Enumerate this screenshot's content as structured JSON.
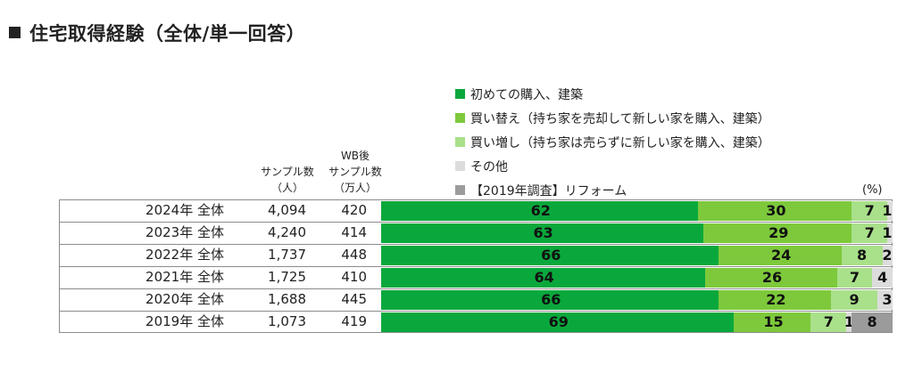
{
  "title": "住宅取得経験（全体/単一回答）",
  "headers": {
    "sample": [
      "サンプル数",
      "（人）"
    ],
    "wb": [
      "WB後",
      "サンプル数",
      "（万人）"
    ]
  },
  "unit_label": "(%)",
  "colors": {
    "series": [
      "#0aa83c",
      "#7dc93b",
      "#a9e08a",
      "#dcdcdc",
      "#9b9b9b"
    ]
  },
  "chart_data": {
    "type": "bar",
    "orientation": "horizontal",
    "stacked": true,
    "title": "住宅取得経験（全体/単一回答）",
    "categories": [
      "2024年 全体",
      "2023年 全体",
      "2022年 全体",
      "2021年 全体",
      "2020年 全体",
      "2019年 全体"
    ],
    "sample_size": [
      "4,094",
      "4,240",
      "1,737",
      "1,725",
      "1,688",
      "1,073"
    ],
    "wb_sample_size": [
      "420",
      "414",
      "448",
      "410",
      "445",
      "419"
    ],
    "series": [
      {
        "name": "初めての購入、建築",
        "values": [
          62,
          63,
          66,
          64,
          66,
          69
        ],
        "labels": [
          "62",
          "63",
          "66",
          "64",
          "66",
          "69"
        ]
      },
      {
        "name": "買い替え（持ち家を売却して新しい家を購入、建築）",
        "values": [
          30,
          29,
          24,
          26,
          22,
          15
        ],
        "labels": [
          "30",
          "29",
          "24",
          "26",
          "22",
          "15"
        ]
      },
      {
        "name": "買い増し（持ち家は売らずに新しい家を購入、建築）",
        "values": [
          7,
          7,
          8,
          7,
          9,
          7
        ],
        "labels": [
          "7",
          "7",
          "8",
          "7",
          "9",
          "7"
        ]
      },
      {
        "name": "その他",
        "values": [
          1,
          1,
          2,
          4,
          3,
          1
        ],
        "labels": [
          "1",
          "1",
          "2",
          "4",
          "3",
          "1"
        ]
      },
      {
        "name": "【2019年調査】リフォーム",
        "values": [
          0,
          0,
          0,
          0,
          0,
          8
        ],
        "labels": [
          "",
          "",
          "",
          "",
          "",
          "8"
        ]
      }
    ],
    "xlim": [
      0,
      100
    ],
    "legend": "top-right"
  }
}
